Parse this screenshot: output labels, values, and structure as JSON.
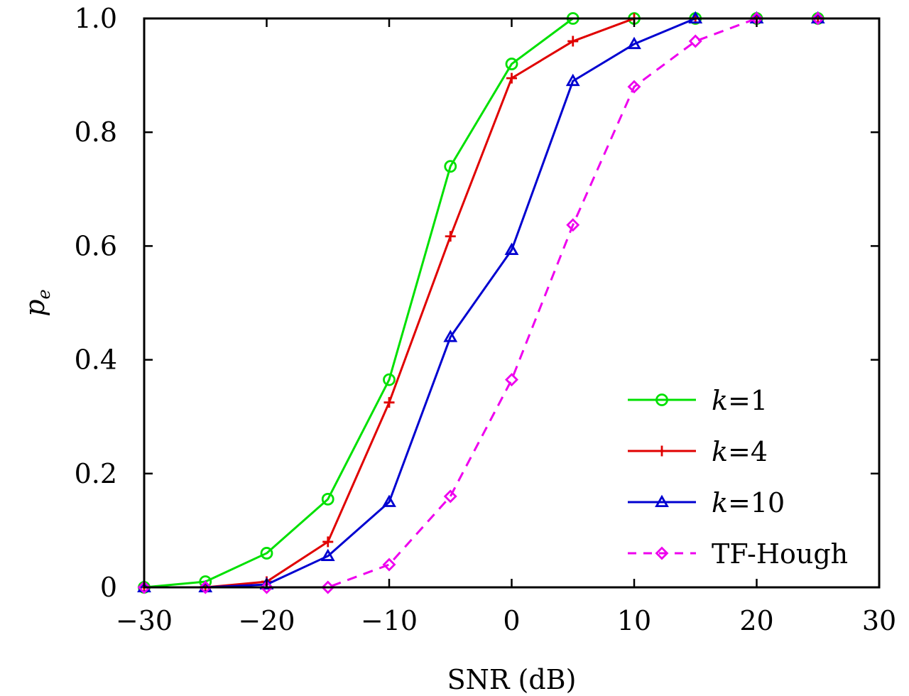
{
  "chart_data": {
    "type": "line",
    "title": "",
    "xlabel": "SNR (dB)",
    "ylabel": "p_e",
    "ylabel_main": "p",
    "ylabel_sub": "e",
    "xlim": [
      -30,
      30
    ],
    "ylim": [
      0,
      1
    ],
    "xticks": [
      -30,
      -20,
      -10,
      0,
      10,
      20,
      30
    ],
    "xtick_labels": [
      "−30",
      "−20",
      "−10",
      "0",
      "10",
      "20",
      "30"
    ],
    "yticks": [
      0,
      0.2,
      0.4,
      0.6,
      0.8,
      1.0
    ],
    "ytick_labels": [
      "0",
      "0.2",
      "0.4",
      "0.6",
      "0.8",
      "1.0"
    ],
    "grid": false,
    "legend_position": "bottom-right",
    "x": [
      -30,
      -25,
      -20,
      -15,
      -10,
      -5,
      0,
      5,
      10,
      15,
      20,
      25
    ],
    "series": [
      {
        "name": "k=1",
        "legend_italic": "k",
        "legend_rest": "=1",
        "color": "#00e000",
        "marker": "circle",
        "line_style": "solid",
        "values": [
          0,
          0.01,
          0.06,
          0.155,
          0.365,
          0.74,
          0.92,
          1,
          1,
          1,
          1,
          1
        ]
      },
      {
        "name": "k=4",
        "legend_italic": "k",
        "legend_rest": "=4",
        "color": "#e00000",
        "marker": "plus",
        "line_style": "solid",
        "values": [
          0,
          0,
          0.01,
          0.08,
          0.325,
          0.617,
          0.895,
          0.96,
          1,
          1,
          1,
          1
        ]
      },
      {
        "name": "k=10",
        "legend_italic": "k",
        "legend_rest": "=10",
        "color": "#0000d0",
        "marker": "triangle",
        "line_style": "solid",
        "values": [
          0,
          0,
          0.005,
          0.055,
          0.15,
          0.44,
          0.593,
          0.89,
          0.955,
          1,
          1,
          1
        ]
      },
      {
        "name": "TF-Hough",
        "legend_italic": "",
        "legend_rest": "TF-Hough",
        "color": "#ee00ee",
        "marker": "diamond",
        "line_style": "dashed",
        "values": [
          0,
          0,
          0,
          0,
          0.04,
          0.16,
          0.365,
          0.637,
          0.88,
          0.96,
          1,
          1
        ]
      }
    ]
  }
}
